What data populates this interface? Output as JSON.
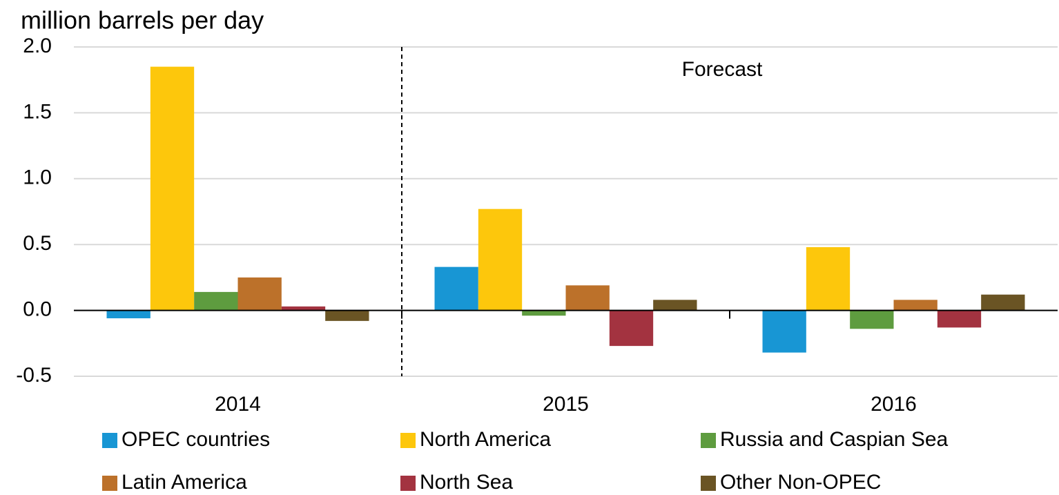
{
  "chart_data": {
    "type": "bar",
    "y_axis_label": "million barrels per day",
    "annotation": "Forecast",
    "categories": [
      "2014",
      "2015",
      "2016"
    ],
    "series": [
      {
        "name": "OPEC countries",
        "color": "#1896d4",
        "values": [
          -0.06,
          0.33,
          -0.32
        ]
      },
      {
        "name": "North America",
        "color": "#fdc70c",
        "values": [
          1.85,
          0.77,
          0.48
        ]
      },
      {
        "name": "Russia and Caspian Sea",
        "color": "#5e9c3f",
        "values": [
          0.14,
          -0.04,
          -0.14
        ]
      },
      {
        "name": "Latin America",
        "color": "#bc712a",
        "values": [
          0.25,
          0.19,
          0.08
        ]
      },
      {
        "name": "North Sea",
        "color": "#a33340",
        "values": [
          0.03,
          -0.27,
          -0.13
        ]
      },
      {
        "name": "Other Non-OPEC",
        "color": "#6a5424",
        "values": [
          -0.08,
          0.08,
          0.12
        ]
      }
    ],
    "ylim": [
      -0.5,
      2.0
    ],
    "yticks": [
      {
        "value": 2.0,
        "label": "2.0"
      },
      1.5,
      {
        "value": 1.0,
        "label": "1.0"
      },
      0.5,
      {
        "value": 0.0,
        "label": "0.0"
      },
      -0.5
    ],
    "grid": true
  }
}
